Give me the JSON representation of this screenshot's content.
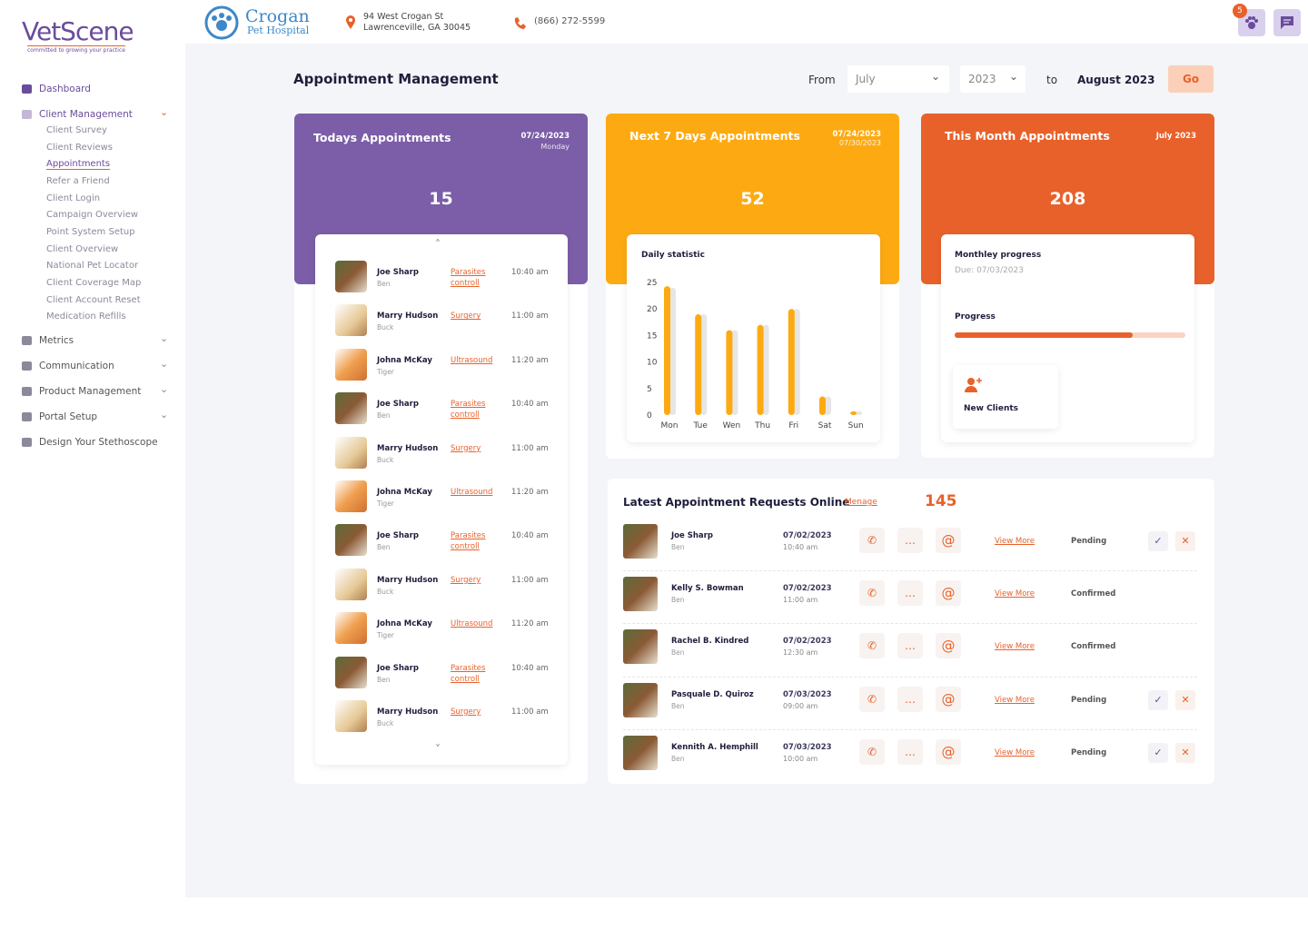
{
  "sidebar": {
    "logo": "VetScene",
    "tagline": "committed to growing your practice",
    "nav": [
      {
        "label": "Dashboard"
      },
      {
        "label": "Client Management",
        "children": [
          "Client Survey",
          "Client Reviews",
          "Appointments",
          "Refer a Friend",
          "Client Login",
          "Campaign Overview",
          "Point System Setup",
          "Client Overview",
          "National Pet Locator",
          "Client Coverage Map",
          "Client Account Reset",
          "Medication Refills"
        ]
      },
      {
        "label": "Metrics"
      },
      {
        "label": "Communication"
      },
      {
        "label": "Product Management"
      },
      {
        "label": "Portal Setup"
      },
      {
        "label": "Design Your Stethoscope"
      }
    ]
  },
  "header": {
    "clinic": "Crogan",
    "clinic_sub": "Pet Hospital",
    "address": [
      "94 West Crogan St",
      "Lawrenceville, GA 30045"
    ],
    "phone": "(866) 272-5599",
    "badge": "5"
  },
  "page": {
    "title": "Appointment Management",
    "from": "From",
    "month": "July",
    "year": "2023",
    "to": "to",
    "to_value": "August 2023",
    "go": "Go"
  },
  "cards": [
    {
      "title": "Todays Appointments",
      "date": "07/24/2023",
      "sub": "Monday",
      "count": "15"
    },
    {
      "title": "Next 7 Days Appointments",
      "date": "07/24/2023",
      "sub": "07/30/2023",
      "count": "52"
    },
    {
      "title": "This Month Appointments",
      "date": "July 2023",
      "count": "208"
    }
  ],
  "today_list": [
    {
      "name": "Joe Sharp",
      "pet": "Ben",
      "service": "Parasites controll",
      "time": "10:40 am"
    },
    {
      "name": "Marry Hudson",
      "pet": "Buck",
      "service": "Surgery",
      "time": "11:00 am"
    },
    {
      "name": "Johna McKay",
      "pet": "Tiger",
      "service": "Ultrasound",
      "time": "11:20 am"
    },
    {
      "name": "Joe Sharp",
      "pet": "Ben",
      "service": "Parasites controll",
      "time": "10:40 am"
    },
    {
      "name": "Marry Hudson",
      "pet": "Buck",
      "service": "Surgery",
      "time": "11:00 am"
    },
    {
      "name": "Johna McKay",
      "pet": "Tiger",
      "service": "Ultrasound",
      "time": "11:20 am"
    },
    {
      "name": "Joe Sharp",
      "pet": "Ben",
      "service": "Parasites controll",
      "time": "10:40 am"
    },
    {
      "name": "Marry Hudson",
      "pet": "Buck",
      "service": "Surgery",
      "time": "11:00 am"
    },
    {
      "name": "Johna McKay",
      "pet": "Tiger",
      "service": "Ultrasound",
      "time": "11:20 am"
    },
    {
      "name": "Joe Sharp",
      "pet": "Ben",
      "service": "Parasites controll",
      "time": "10:40 am"
    },
    {
      "name": "Marry Hudson",
      "pet": "Buck",
      "service": "Surgery",
      "time": "11:00 am"
    }
  ],
  "chart_data": {
    "type": "bar",
    "title": "Daily statistic",
    "categories": [
      "Mon",
      "Tue",
      "Wen",
      "Thu",
      "Fri",
      "Sat",
      "Sun"
    ],
    "series": [
      {
        "color": "#fdaa12",
        "values": [
          24.3,
          19,
          16,
          17,
          20,
          3.5,
          0.7
        ]
      },
      {
        "color": "#e6e6e6",
        "values": [
          24,
          19,
          16,
          17,
          20,
          3.5,
          0.7
        ]
      }
    ],
    "ylim": [
      0,
      25
    ],
    "yticks": [
      0,
      5,
      10,
      15,
      20,
      25
    ],
    "grid": false
  },
  "monthly": {
    "title": "Monthley progress",
    "due": "Due: 07/03/2023",
    "progress_label": "Progress",
    "progress": 77,
    "new_clients": "New Clients"
  },
  "requests": {
    "title": "Latest Appointment Requests Online",
    "manage": "Menage",
    "count": "145",
    "rows": [
      {
        "name": "Joe Sharp",
        "pet": "Ben",
        "date": "07/02/2023",
        "time": "10:40 am",
        "link": "View More",
        "status": "Pending"
      },
      {
        "name": "Kelly S. Bowman",
        "pet": "Ben",
        "date": "07/02/2023",
        "time": "11:00 am",
        "link": "View More",
        "status": "Confirmed"
      },
      {
        "name": "Rachel B. Kindred",
        "pet": "Ben",
        "date": "07/02/2023",
        "time": "12:30 am",
        "link": "View More",
        "status": "Confirmed"
      },
      {
        "name": "Pasquale D. Quiroz",
        "pet": "Ben",
        "date": "07/03/2023",
        "time": "09:00 am",
        "link": "View More",
        "status": "Pending"
      },
      {
        "name": "Kennith A. Hemphill",
        "pet": "Ben",
        "date": "07/03/2023",
        "time": "10:00 am",
        "link": "View More",
        "status": "Pending"
      }
    ]
  }
}
